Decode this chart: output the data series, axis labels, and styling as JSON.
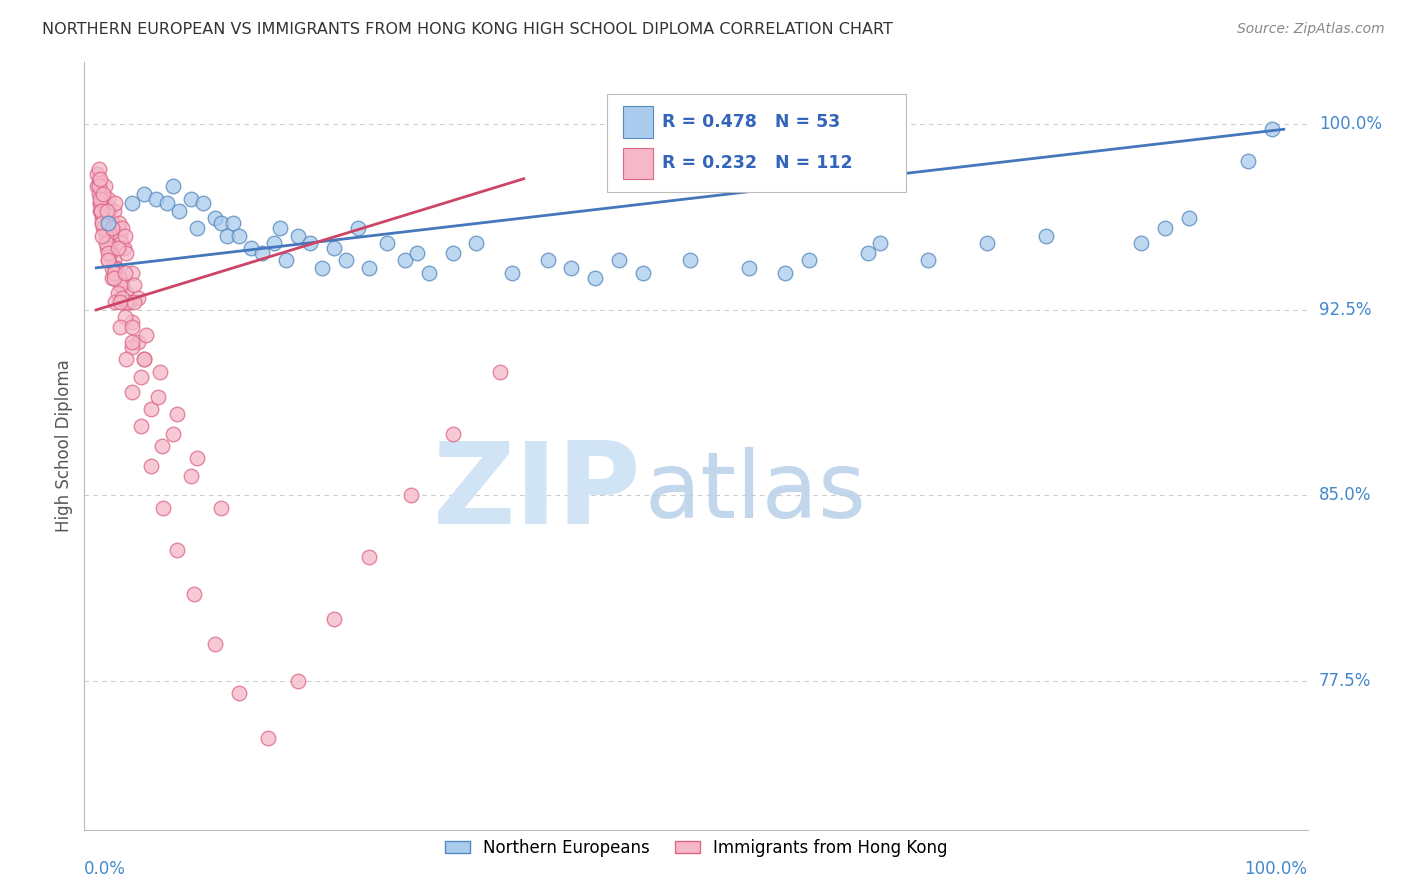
{
  "title": "NORTHERN EUROPEAN VS IMMIGRANTS FROM HONG KONG HIGH SCHOOL DIPLOMA CORRELATION CHART",
  "source": "Source: ZipAtlas.com",
  "ylabel": "High School Diploma",
  "ytick_labels": [
    "100.0%",
    "92.5%",
    "85.0%",
    "77.5%"
  ],
  "ytick_values": [
    1.0,
    0.925,
    0.85,
    0.775
  ],
  "xlim": [
    -0.01,
    1.02
  ],
  "ylim": [
    0.715,
    1.025
  ],
  "legend_blue_r": "R = 0.478",
  "legend_blue_n": "N = 53",
  "legend_pink_r": "R = 0.232",
  "legend_pink_n": "N = 112",
  "legend_blue_label": "Northern Europeans",
  "legend_pink_label": "Immigrants from Hong Kong",
  "blue_face_color": "#aaccee",
  "pink_face_color": "#f5b8c8",
  "blue_edge_color": "#5588bb",
  "pink_edge_color": "#dd6688",
  "blue_line_color": "#4477bb",
  "pink_line_color": "#cc4466",
  "grid_color": "#cccccc",
  "title_color": "#333333",
  "axis_label_color": "#555555",
  "right_tick_color": "#4488cc",
  "blue_line_x": [
    0.0,
    1.0
  ],
  "blue_line_y": [
    0.942,
    0.998
  ],
  "pink_line_x": [
    0.0,
    0.36
  ],
  "pink_line_y": [
    0.925,
    0.978
  ],
  "blue_x": [
    0.01,
    0.03,
    0.04,
    0.05,
    0.06,
    0.065,
    0.07,
    0.08,
    0.085,
    0.09,
    0.1,
    0.105,
    0.11,
    0.115,
    0.12,
    0.13,
    0.14,
    0.15,
    0.155,
    0.16,
    0.17,
    0.18,
    0.19,
    0.2,
    0.21,
    0.22,
    0.23,
    0.245,
    0.26,
    0.27,
    0.28,
    0.3,
    0.32,
    0.35,
    0.38,
    0.4,
    0.42,
    0.44,
    0.46,
    0.5,
    0.55,
    0.58,
    0.6,
    0.65,
    0.66,
    0.7,
    0.75,
    0.8,
    0.88,
    0.9,
    0.92,
    0.97,
    0.99
  ],
  "blue_y": [
    0.96,
    0.968,
    0.972,
    0.97,
    0.968,
    0.975,
    0.965,
    0.97,
    0.958,
    0.968,
    0.962,
    0.96,
    0.955,
    0.96,
    0.955,
    0.95,
    0.948,
    0.952,
    0.958,
    0.945,
    0.955,
    0.952,
    0.942,
    0.95,
    0.945,
    0.958,
    0.942,
    0.952,
    0.945,
    0.948,
    0.94,
    0.948,
    0.952,
    0.94,
    0.945,
    0.942,
    0.938,
    0.945,
    0.94,
    0.945,
    0.942,
    0.94,
    0.945,
    0.948,
    0.952,
    0.945,
    0.952,
    0.955,
    0.952,
    0.958,
    0.962,
    0.985,
    0.998
  ],
  "pink_x": [
    0.001,
    0.002,
    0.003,
    0.004,
    0.005,
    0.006,
    0.007,
    0.008,
    0.009,
    0.01,
    0.011,
    0.012,
    0.013,
    0.014,
    0.015,
    0.016,
    0.017,
    0.018,
    0.019,
    0.02,
    0.021,
    0.022,
    0.023,
    0.024,
    0.025,
    0.002,
    0.003,
    0.005,
    0.007,
    0.01,
    0.012,
    0.015,
    0.017,
    0.02,
    0.022,
    0.025,
    0.028,
    0.03,
    0.032,
    0.035,
    0.003,
    0.005,
    0.008,
    0.012,
    0.016,
    0.02,
    0.025,
    0.03,
    0.035,
    0.04,
    0.004,
    0.006,
    0.009,
    0.013,
    0.018,
    0.024,
    0.03,
    0.038,
    0.046,
    0.055,
    0.001,
    0.002,
    0.003,
    0.004,
    0.005,
    0.008,
    0.01,
    0.013,
    0.016,
    0.02,
    0.025,
    0.03,
    0.038,
    0.046,
    0.056,
    0.068,
    0.082,
    0.1,
    0.12,
    0.145,
    0.17,
    0.2,
    0.23,
    0.265,
    0.3,
    0.34,
    0.005,
    0.01,
    0.015,
    0.022,
    0.03,
    0.04,
    0.052,
    0.065,
    0.08,
    0.01,
    0.015,
    0.02,
    0.03,
    0.002,
    0.003,
    0.006,
    0.009,
    0.013,
    0.018,
    0.024,
    0.032,
    0.042,
    0.054,
    0.068,
    0.085,
    0.105
  ],
  "pink_y": [
    0.975,
    0.978,
    0.968,
    0.972,
    0.965,
    0.97,
    0.975,
    0.968,
    0.962,
    0.97,
    0.965,
    0.96,
    0.958,
    0.96,
    0.965,
    0.968,
    0.955,
    0.958,
    0.96,
    0.955,
    0.952,
    0.958,
    0.95,
    0.955,
    0.948,
    0.972,
    0.965,
    0.962,
    0.958,
    0.952,
    0.948,
    0.945,
    0.942,
    0.938,
    0.935,
    0.932,
    0.928,
    0.94,
    0.935,
    0.93,
    0.968,
    0.96,
    0.955,
    0.948,
    0.942,
    0.935,
    0.928,
    0.92,
    0.912,
    0.905,
    0.965,
    0.958,
    0.95,
    0.942,
    0.932,
    0.922,
    0.91,
    0.898,
    0.885,
    0.87,
    0.98,
    0.975,
    0.97,
    0.965,
    0.96,
    0.952,
    0.945,
    0.938,
    0.928,
    0.918,
    0.905,
    0.892,
    0.878,
    0.862,
    0.845,
    0.828,
    0.81,
    0.79,
    0.77,
    0.752,
    0.775,
    0.8,
    0.825,
    0.85,
    0.875,
    0.9,
    0.955,
    0.948,
    0.94,
    0.93,
    0.918,
    0.905,
    0.89,
    0.875,
    0.858,
    0.945,
    0.938,
    0.928,
    0.912,
    0.982,
    0.978,
    0.972,
    0.965,
    0.958,
    0.95,
    0.94,
    0.928,
    0.915,
    0.9,
    0.883,
    0.865,
    0.845
  ]
}
